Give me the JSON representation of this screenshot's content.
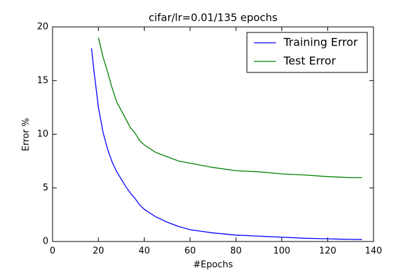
{
  "chart_data": {
    "type": "line",
    "title": "cifar/lr=0.01/135 epochs",
    "x_label": "#Epochs",
    "y_label": "Error %",
    "x": [
      17,
      18,
      20,
      22,
      24,
      26,
      28,
      30,
      32,
      34,
      36,
      38,
      40,
      45,
      50,
      55,
      60,
      65,
      70,
      80,
      90,
      100,
      110,
      120,
      125,
      130,
      135
    ],
    "series": [
      {
        "name": "Training Error",
        "color": "#0000ff",
        "values": [
          18,
          16,
          12.5,
          10.2,
          8.6,
          7.4,
          6.5,
          5.8,
          5.1,
          4.5,
          4.0,
          3.4,
          3.0,
          2.3,
          1.8,
          1.4,
          1.1,
          0.95,
          0.8,
          0.6,
          0.5,
          0.4,
          0.3,
          0.25,
          0.22,
          0.2,
          0.18
        ]
      },
      {
        "name": "Test Error",
        "color": "#008000",
        "values": [
          null,
          null,
          19,
          17.2,
          15.8,
          14.3,
          13,
          12.2,
          11.4,
          10.6,
          10.1,
          9.4,
          9.0,
          8.3,
          7.9,
          7.5,
          7.3,
          7.1,
          6.9,
          6.6,
          6.5,
          6.3,
          6.2,
          6.05,
          6.0,
          5.95,
          5.95
        ]
      }
    ],
    "xlim": [
      0,
      140
    ],
    "xticks": [
      0,
      20,
      40,
      60,
      80,
      100,
      120,
      140
    ],
    "ylim": [
      0,
      20
    ],
    "yticks": [
      0,
      5,
      10,
      15,
      20
    ],
    "legend": "upper right"
  }
}
